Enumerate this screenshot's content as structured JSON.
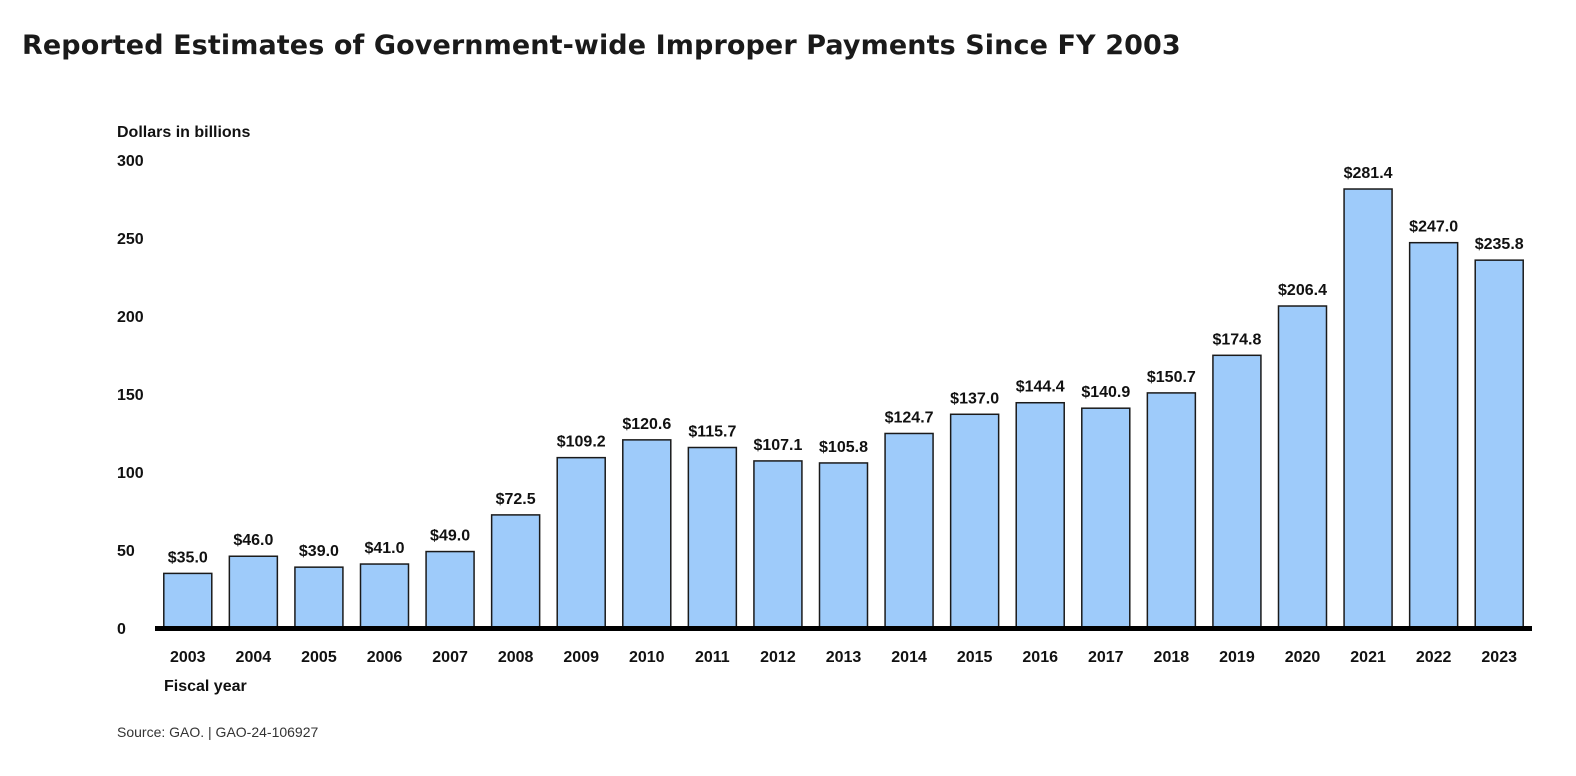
{
  "title": "Reported Estimates of Government-wide Improper Payments Since FY 2003",
  "source": "Source: GAO.  |  GAO-24-106927",
  "chart_data": {
    "type": "bar",
    "title": "Reported Estimates of Government-wide Improper Payments Since FY 2003",
    "ylabel": "Dollars in billions",
    "xlabel": "Fiscal year",
    "ylim": [
      0,
      300
    ],
    "yticks": [
      0,
      50,
      100,
      150,
      200,
      250,
      300
    ],
    "grid": false,
    "categories": [
      "2003",
      "2004",
      "2005",
      "2006",
      "2007",
      "2008",
      "2009",
      "2010",
      "2011",
      "2012",
      "2013",
      "2014",
      "2015",
      "2016",
      "2017",
      "2018",
      "2019",
      "2020",
      "2021",
      "2022",
      "2023"
    ],
    "values": [
      35.0,
      46.0,
      39.0,
      41.0,
      49.0,
      72.5,
      109.2,
      120.6,
      115.7,
      107.1,
      105.8,
      124.7,
      137.0,
      144.4,
      140.9,
      150.7,
      174.8,
      206.4,
      281.4,
      247.0,
      235.8
    ],
    "data_labels": [
      "$35.0",
      "$46.0",
      "$39.0",
      "$41.0",
      "$49.0",
      "$72.5",
      "$109.2",
      "$120.6",
      "$115.7",
      "$107.1",
      "$105.8",
      "$124.7",
      "$137.0",
      "$144.4",
      "$140.9",
      "$150.7",
      "$174.8",
      "$206.4",
      "$281.4",
      "$247.0",
      "$235.8"
    ],
    "colors": {
      "bar": "#9ecbfa",
      "bar_stroke": "#1a1a1a",
      "axis": "#000000"
    }
  }
}
